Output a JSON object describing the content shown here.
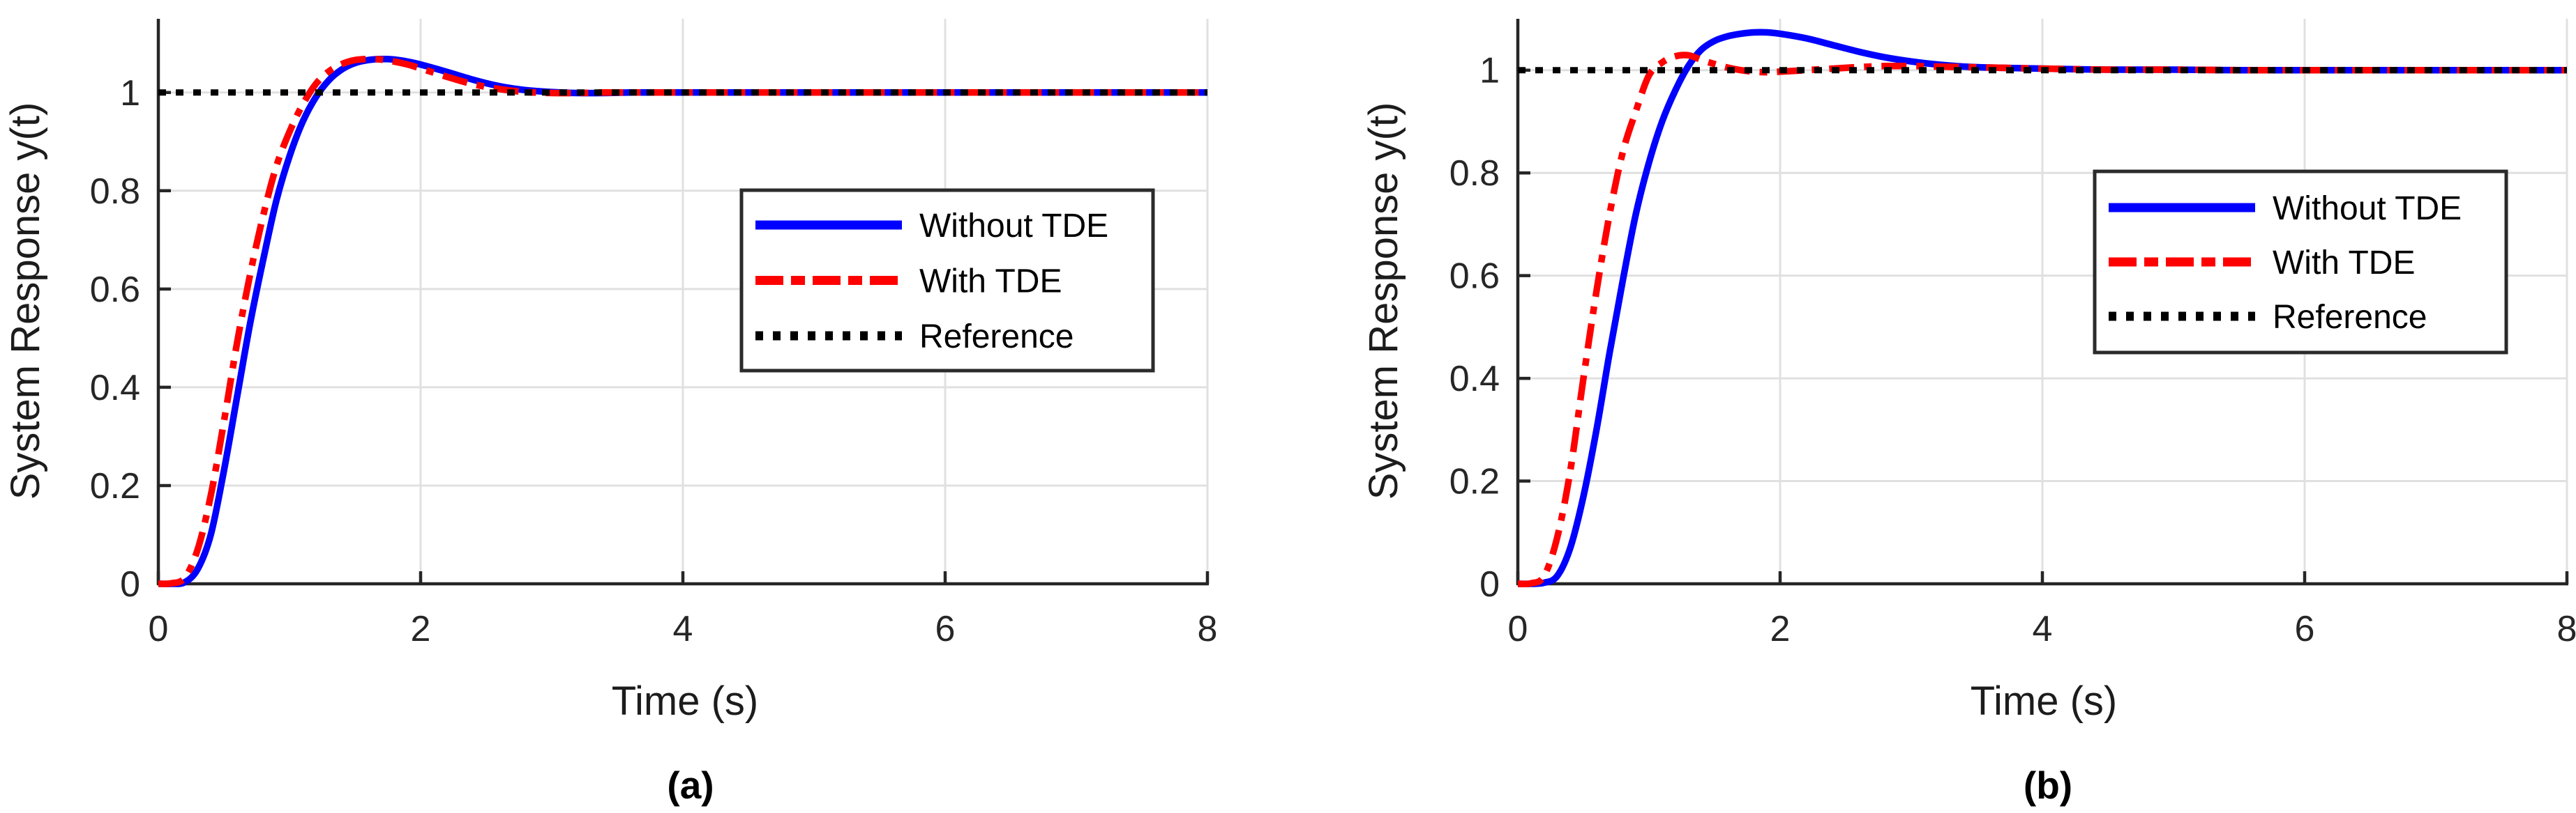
{
  "figure": {
    "background_color": "#ffffff",
    "grid_color": "#e0e0e0",
    "axis_color": "#262626",
    "tick_label_color": "#262626",
    "legend_border_color": "#2b2b2b"
  },
  "chart_data": [
    {
      "type": "line",
      "caption": "(a)",
      "xlabel": "Time (s)",
      "ylabel": "System Response y(t)",
      "xlim": [
        0,
        8
      ],
      "ylim": [
        0,
        1.15
      ],
      "xticks": [
        0,
        2,
        4,
        6,
        8
      ],
      "yticks": [
        0,
        0.2,
        0.4,
        0.6,
        0.8,
        1
      ],
      "xtick_labels": [
        "0",
        "2",
        "4",
        "6",
        "8"
      ],
      "ytick_labels": [
        "0",
        "0.2",
        "0.4",
        "0.6",
        "0.8",
        "1"
      ],
      "grid": true,
      "legend_position": "center-right",
      "series": [
        {
          "name": "Without TDE",
          "color": "#0000ff",
          "line_style": "solid",
          "points": [
            [
              0,
              0
            ],
            [
              0.1,
              0
            ],
            [
              0.2,
              0.003
            ],
            [
              0.3,
              0.03
            ],
            [
              0.4,
              0.1
            ],
            [
              0.5,
              0.23
            ],
            [
              0.6,
              0.38
            ],
            [
              0.7,
              0.53
            ],
            [
              0.8,
              0.66
            ],
            [
              0.9,
              0.78
            ],
            [
              1,
              0.87
            ],
            [
              1.1,
              0.94
            ],
            [
              1.2,
              0.99
            ],
            [
              1.3,
              1.025
            ],
            [
              1.4,
              1.047
            ],
            [
              1.5,
              1.06
            ],
            [
              1.6,
              1.066
            ],
            [
              1.7,
              1.068
            ],
            [
              1.8,
              1.067
            ],
            [
              1.9,
              1.063
            ],
            [
              2,
              1.057
            ],
            [
              2.2,
              1.042
            ],
            [
              2.4,
              1.026
            ],
            [
              2.6,
              1.013
            ],
            [
              2.8,
              1.005
            ],
            [
              3,
              1.001
            ],
            [
              3.2,
              0.999
            ],
            [
              3.4,
              0.999
            ],
            [
              3.6,
              1
            ],
            [
              3.8,
              1
            ],
            [
              4,
              1
            ],
            [
              4.5,
              1
            ],
            [
              5,
              1
            ],
            [
              5.5,
              1
            ],
            [
              6,
              1
            ],
            [
              6.5,
              1
            ],
            [
              7,
              1
            ],
            [
              7.5,
              1
            ],
            [
              8,
              1
            ]
          ]
        },
        {
          "name": "With TDE",
          "color": "#ff0000",
          "line_style": "dash-dot",
          "points": [
            [
              0,
              0
            ],
            [
              0.1,
              0.001
            ],
            [
              0.2,
              0.012
            ],
            [
              0.3,
              0.07
            ],
            [
              0.4,
              0.18
            ],
            [
              0.5,
              0.33
            ],
            [
              0.6,
              0.49
            ],
            [
              0.7,
              0.63
            ],
            [
              0.8,
              0.75
            ],
            [
              0.9,
              0.85
            ],
            [
              1,
              0.92
            ],
            [
              1.1,
              0.975
            ],
            [
              1.2,
              1.017
            ],
            [
              1.3,
              1.043
            ],
            [
              1.4,
              1.058
            ],
            [
              1.5,
              1.066
            ],
            [
              1.6,
              1.068
            ],
            [
              1.7,
              1.067
            ],
            [
              1.8,
              1.063
            ],
            [
              1.9,
              1.057
            ],
            [
              2,
              1.049
            ],
            [
              2.2,
              1.032
            ],
            [
              2.4,
              1.017
            ],
            [
              2.6,
              1.007
            ],
            [
              2.8,
              1.001
            ],
            [
              3,
              0.999
            ],
            [
              3.2,
              0.999
            ],
            [
              3.4,
              1
            ],
            [
              3.6,
              1
            ],
            [
              3.8,
              1
            ],
            [
              4,
              1
            ],
            [
              4.5,
              1
            ],
            [
              5,
              1
            ],
            [
              5.5,
              1
            ],
            [
              6,
              1
            ],
            [
              6.5,
              1
            ],
            [
              7,
              1
            ],
            [
              7.5,
              1
            ],
            [
              8,
              1
            ]
          ]
        },
        {
          "name": "Reference",
          "color": "#000000",
          "line_style": "dotted",
          "points": [
            [
              0,
              1
            ],
            [
              8,
              1
            ]
          ]
        }
      ]
    },
    {
      "type": "line",
      "caption": "(b)",
      "xlabel": "Time (s)",
      "ylabel": "System Response y(t)",
      "xlim": [
        0,
        8
      ],
      "ylim": [
        0,
        1.1
      ],
      "xticks": [
        0,
        2,
        4,
        6,
        8
      ],
      "yticks": [
        0,
        0.2,
        0.4,
        0.6,
        0.8,
        1
      ],
      "xtick_labels": [
        "0",
        "2",
        "4",
        "6",
        "8"
      ],
      "ytick_labels": [
        "0",
        "0.2",
        "0.4",
        "0.6",
        "0.8",
        "1"
      ],
      "grid": true,
      "legend_position": "center-right",
      "series": [
        {
          "name": "Without TDE",
          "color": "#0000ff",
          "line_style": "solid",
          "points": [
            [
              0,
              0
            ],
            [
              0.1,
              0
            ],
            [
              0.2,
              0.002
            ],
            [
              0.3,
              0.015
            ],
            [
              0.4,
              0.07
            ],
            [
              0.5,
              0.17
            ],
            [
              0.6,
              0.3
            ],
            [
              0.7,
              0.45
            ],
            [
              0.8,
              0.59
            ],
            [
              0.9,
              0.72
            ],
            [
              1,
              0.82
            ],
            [
              1.1,
              0.9
            ],
            [
              1.2,
              0.96
            ],
            [
              1.3,
              1.008
            ],
            [
              1.4,
              1.04
            ],
            [
              1.5,
              1.057
            ],
            [
              1.6,
              1.066
            ],
            [
              1.7,
              1.071
            ],
            [
              1.8,
              1.0735
            ],
            [
              1.9,
              1.0735
            ],
            [
              2,
              1.071
            ],
            [
              2.2,
              1.062
            ],
            [
              2.4,
              1.049
            ],
            [
              2.6,
              1.036
            ],
            [
              2.8,
              1.025
            ],
            [
              3,
              1.017
            ],
            [
              3.2,
              1.011
            ],
            [
              3.4,
              1.007
            ],
            [
              3.6,
              1.005
            ],
            [
              3.8,
              1.004
            ],
            [
              4,
              1.003
            ],
            [
              4.5,
              1.001
            ],
            [
              5,
              1.001
            ],
            [
              5.5,
              1
            ],
            [
              6,
              1
            ],
            [
              6.5,
              1
            ],
            [
              7,
              1
            ],
            [
              7.5,
              1
            ],
            [
              8,
              1
            ]
          ]
        },
        {
          "name": "With TDE",
          "color": "#ff0000",
          "line_style": "dash-dot",
          "points": [
            [
              0,
              0
            ],
            [
              0.1,
              0.001
            ],
            [
              0.2,
              0.015
            ],
            [
              0.3,
              0.09
            ],
            [
              0.4,
              0.22
            ],
            [
              0.5,
              0.4
            ],
            [
              0.6,
              0.57
            ],
            [
              0.7,
              0.72
            ],
            [
              0.8,
              0.84
            ],
            [
              0.9,
              0.92
            ],
            [
              1,
              0.99
            ],
            [
              1.1,
              1.015
            ],
            [
              1.2,
              1.027
            ],
            [
              1.3,
              1.029
            ],
            [
              1.4,
              1.02
            ],
            [
              1.5,
              1.012
            ],
            [
              1.6,
              1.005
            ],
            [
              1.7,
              1
            ],
            [
              1.8,
              0.997
            ],
            [
              1.9,
              0.996
            ],
            [
              2,
              0.997
            ],
            [
              2.2,
              1
            ],
            [
              2.4,
              1.003
            ],
            [
              2.6,
              1.006
            ],
            [
              2.8,
              1.008
            ],
            [
              3,
              1.008
            ],
            [
              3.2,
              1.007
            ],
            [
              3.4,
              1.006
            ],
            [
              3.6,
              1.005
            ],
            [
              3.8,
              1.004
            ],
            [
              4,
              1.003
            ],
            [
              4.5,
              1.001
            ],
            [
              5,
              1.001
            ],
            [
              5.5,
              1
            ],
            [
              6,
              1
            ],
            [
              6.5,
              1
            ],
            [
              7,
              1
            ],
            [
              7.5,
              1
            ],
            [
              8,
              1
            ]
          ]
        },
        {
          "name": "Reference",
          "color": "#000000",
          "line_style": "dotted",
          "points": [
            [
              0,
              1
            ],
            [
              8,
              1
            ]
          ]
        }
      ]
    }
  ]
}
